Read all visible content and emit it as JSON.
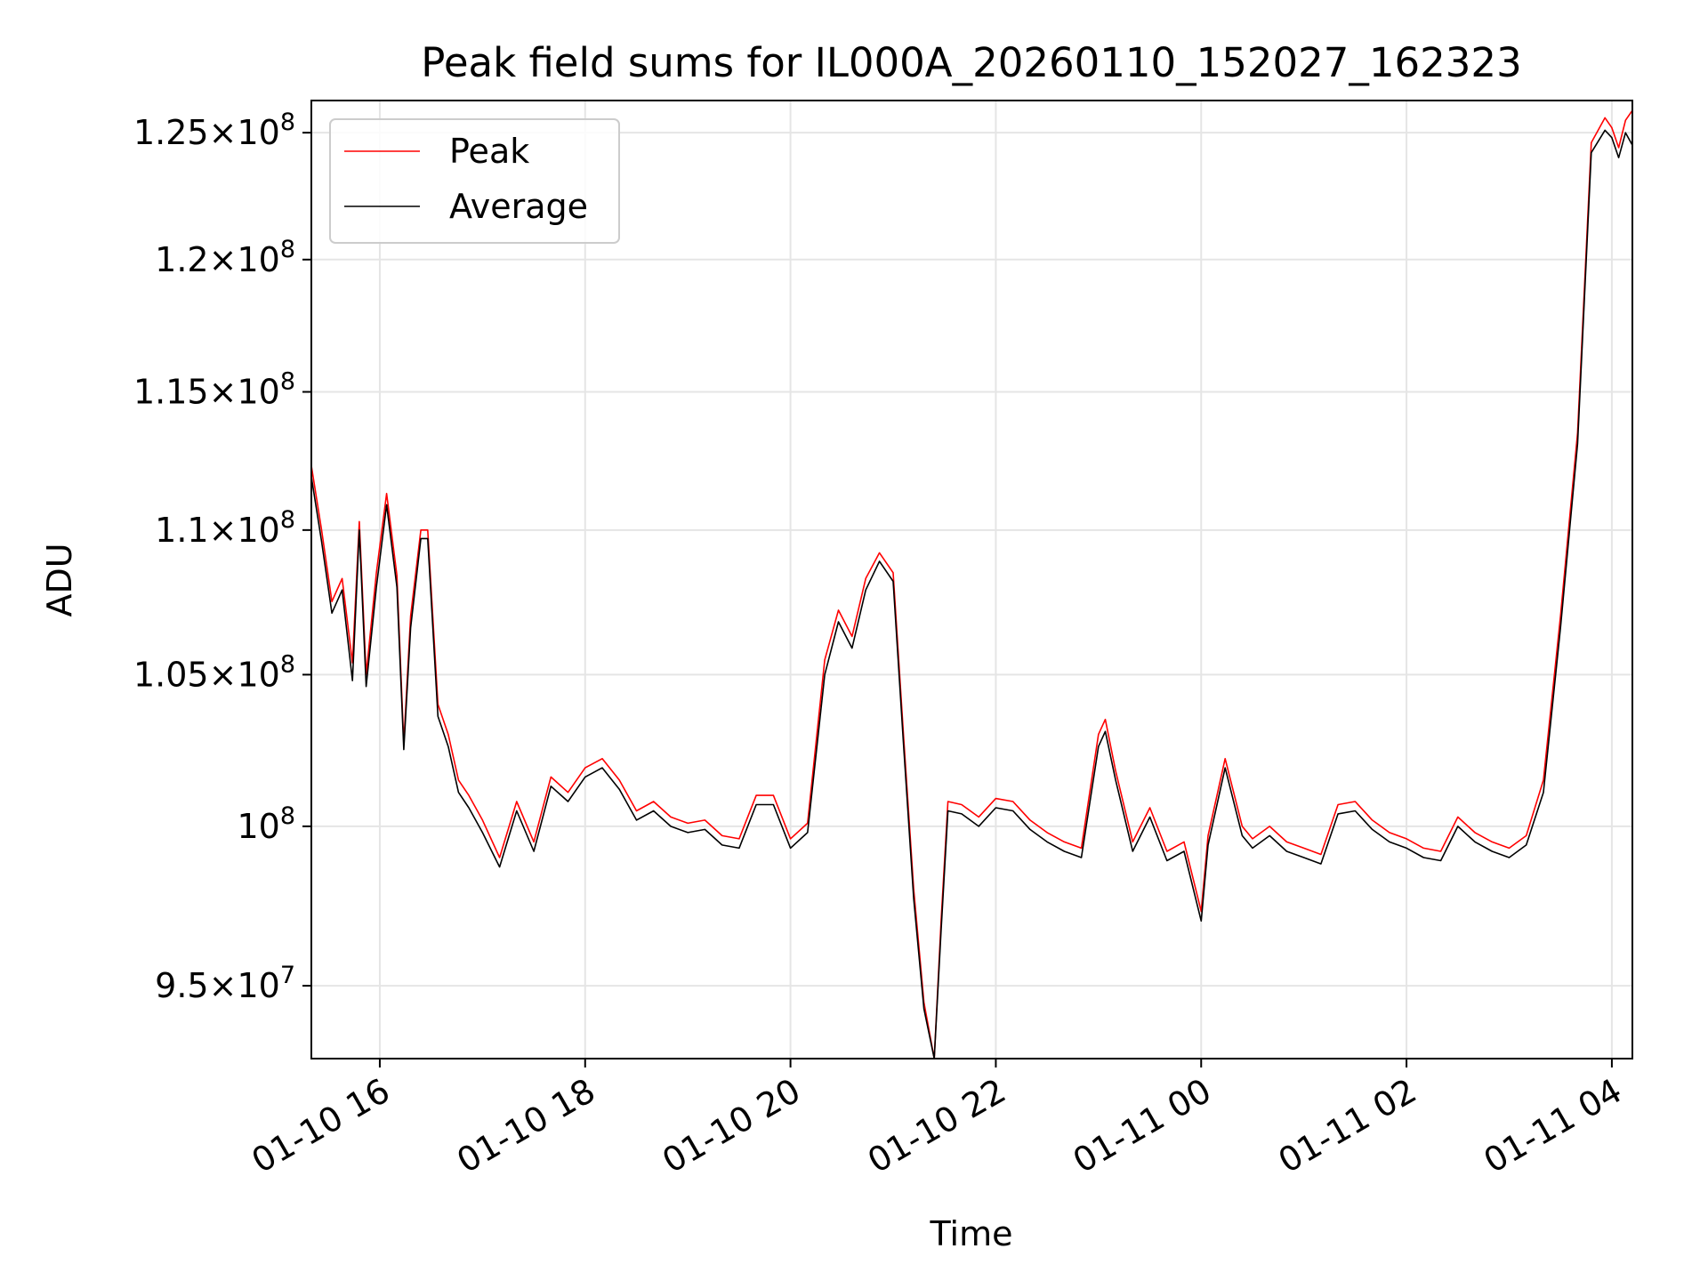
{
  "chart_data": {
    "type": "line",
    "title": "Peak field sums for IL000A_20260110_152027_162323",
    "xlabel": "Time",
    "ylabel": "ADU",
    "y_scale": "log",
    "grid": true,
    "legend": "upper-left",
    "xlim": [
      "2026-01-10 15:20",
      "2026-01-11 04:12"
    ],
    "ylim": [
      92800000,
      126300000
    ],
    "x_ticks": [
      {
        "value": "2026-01-10 16:00",
        "label": "01-10 16"
      },
      {
        "value": "2026-01-10 18:00",
        "label": "01-10 18"
      },
      {
        "value": "2026-01-10 20:00",
        "label": "01-10 20"
      },
      {
        "value": "2026-01-10 22:00",
        "label": "01-10 22"
      },
      {
        "value": "2026-01-11 00:00",
        "label": "01-11 00"
      },
      {
        "value": "2026-01-11 02:00",
        "label": "01-11 02"
      },
      {
        "value": "2026-01-11 04:00",
        "label": "01-11 04"
      }
    ],
    "y_ticks": [
      {
        "value": 95000000,
        "mantissa": "9.5",
        "exp": "7"
      },
      {
        "value": 100000000,
        "mantissa": "",
        "exp": "8"
      },
      {
        "value": 105000000,
        "mantissa": "1.05",
        "exp": "8"
      },
      {
        "value": 110000000,
        "mantissa": "1.1",
        "exp": "8"
      },
      {
        "value": 115000000,
        "mantissa": "1.15",
        "exp": "8"
      },
      {
        "value": 120000000,
        "mantissa": "1.2",
        "exp": "8"
      },
      {
        "value": 125000000,
        "mantissa": "1.25",
        "exp": "8"
      }
    ],
    "series": [
      {
        "name": "Peak",
        "color": "#ff0000",
        "x": [
          "2026-01-10 15:20",
          "2026-01-10 15:26",
          "2026-01-10 15:32",
          "2026-01-10 15:38",
          "2026-01-10 15:44",
          "2026-01-10 15:48",
          "2026-01-10 15:52",
          "2026-01-10 15:58",
          "2026-01-10 16:04",
          "2026-01-10 16:10",
          "2026-01-10 16:14",
          "2026-01-10 16:18",
          "2026-01-10 16:24",
          "2026-01-10 16:28",
          "2026-01-10 16:34",
          "2026-01-10 16:40",
          "2026-01-10 16:46",
          "2026-01-10 16:52",
          "2026-01-10 17:00",
          "2026-01-10 17:10",
          "2026-01-10 17:20",
          "2026-01-10 17:30",
          "2026-01-10 17:40",
          "2026-01-10 17:50",
          "2026-01-10 18:00",
          "2026-01-10 18:10",
          "2026-01-10 18:20",
          "2026-01-10 18:30",
          "2026-01-10 18:40",
          "2026-01-10 18:50",
          "2026-01-10 19:00",
          "2026-01-10 19:10",
          "2026-01-10 19:20",
          "2026-01-10 19:30",
          "2026-01-10 19:40",
          "2026-01-10 19:50",
          "2026-01-10 20:00",
          "2026-01-10 20:10",
          "2026-01-10 20:20",
          "2026-01-10 20:28",
          "2026-01-10 20:36",
          "2026-01-10 20:44",
          "2026-01-10 20:52",
          "2026-01-10 21:00",
          "2026-01-10 21:06",
          "2026-01-10 21:12",
          "2026-01-10 21:18",
          "2026-01-10 21:24",
          "2026-01-10 21:28",
          "2026-01-10 21:32",
          "2026-01-10 21:40",
          "2026-01-10 21:50",
          "2026-01-10 22:00",
          "2026-01-10 22:10",
          "2026-01-10 22:20",
          "2026-01-10 22:30",
          "2026-01-10 22:40",
          "2026-01-10 22:50",
          "2026-01-10 23:00",
          "2026-01-10 23:04",
          "2026-01-10 23:10",
          "2026-01-10 23:20",
          "2026-01-10 23:30",
          "2026-01-10 23:40",
          "2026-01-10 23:50",
          "2026-01-11 00:00",
          "2026-01-11 00:04",
          "2026-01-11 00:14",
          "2026-01-11 00:24",
          "2026-01-11 00:30",
          "2026-01-11 00:40",
          "2026-01-11 00:50",
          "2026-01-11 01:00",
          "2026-01-11 01:10",
          "2026-01-11 01:20",
          "2026-01-11 01:30",
          "2026-01-11 01:40",
          "2026-01-11 01:50",
          "2026-01-11 02:00",
          "2026-01-11 02:10",
          "2026-01-11 02:20",
          "2026-01-11 02:30",
          "2026-01-11 02:40",
          "2026-01-11 02:50",
          "2026-01-11 03:00",
          "2026-01-11 03:10",
          "2026-01-11 03:20",
          "2026-01-11 03:30",
          "2026-01-11 03:40",
          "2026-01-11 03:48",
          "2026-01-11 03:56",
          "2026-01-11 04:00",
          "2026-01-11 04:04",
          "2026-01-11 04:08",
          "2026-01-11 04:12"
        ],
        "values": [
          112300000,
          110000000,
          107500000,
          108300000,
          105400000,
          110300000,
          105000000,
          108500000,
          111300000,
          108400000,
          102700000,
          107000000,
          110000000,
          110000000,
          104000000,
          103000000,
          101500000,
          101000000,
          100200000,
          99000000,
          100800000,
          99500000,
          101600000,
          101100000,
          101900000,
          102200000,
          101500000,
          100500000,
          100800000,
          100300000,
          100100000,
          100200000,
          99700000,
          99600000,
          101000000,
          101000000,
          99600000,
          100100000,
          105500000,
          107200000,
          106300000,
          108300000,
          109200000,
          108500000,
          103000000,
          98000000,
          94500000,
          92800000,
          97000000,
          100800000,
          100700000,
          100300000,
          100900000,
          100800000,
          100200000,
          99800000,
          99500000,
          99300000,
          103000000,
          103500000,
          101800000,
          99500000,
          100600000,
          99200000,
          99500000,
          97300000,
          99700000,
          102200000,
          100000000,
          99600000,
          100000000,
          99500000,
          99300000,
          99100000,
          100700000,
          100800000,
          100200000,
          99800000,
          99600000,
          99300000,
          99200000,
          100300000,
          99800000,
          99500000,
          99300000,
          99700000,
          101500000,
          107000000,
          113500000,
          124600000,
          125600000,
          125200000,
          124400000,
          125500000,
          125900000
        ]
      },
      {
        "name": "Average",
        "color": "#000000",
        "x": [
          "2026-01-10 15:20",
          "2026-01-10 15:26",
          "2026-01-10 15:32",
          "2026-01-10 15:38",
          "2026-01-10 15:44",
          "2026-01-10 15:48",
          "2026-01-10 15:52",
          "2026-01-10 15:58",
          "2026-01-10 16:04",
          "2026-01-10 16:10",
          "2026-01-10 16:14",
          "2026-01-10 16:18",
          "2026-01-10 16:24",
          "2026-01-10 16:28",
          "2026-01-10 16:34",
          "2026-01-10 16:40",
          "2026-01-10 16:46",
          "2026-01-10 16:52",
          "2026-01-10 17:00",
          "2026-01-10 17:10",
          "2026-01-10 17:20",
          "2026-01-10 17:30",
          "2026-01-10 17:40",
          "2026-01-10 17:50",
          "2026-01-10 18:00",
          "2026-01-10 18:10",
          "2026-01-10 18:20",
          "2026-01-10 18:30",
          "2026-01-10 18:40",
          "2026-01-10 18:50",
          "2026-01-10 19:00",
          "2026-01-10 19:10",
          "2026-01-10 19:20",
          "2026-01-10 19:30",
          "2026-01-10 19:40",
          "2026-01-10 19:50",
          "2026-01-10 20:00",
          "2026-01-10 20:10",
          "2026-01-10 20:20",
          "2026-01-10 20:28",
          "2026-01-10 20:36",
          "2026-01-10 20:44",
          "2026-01-10 20:52",
          "2026-01-10 21:00",
          "2026-01-10 21:06",
          "2026-01-10 21:12",
          "2026-01-10 21:18",
          "2026-01-10 21:24",
          "2026-01-10 21:28",
          "2026-01-10 21:32",
          "2026-01-10 21:40",
          "2026-01-10 21:50",
          "2026-01-10 22:00",
          "2026-01-10 22:10",
          "2026-01-10 22:20",
          "2026-01-10 22:30",
          "2026-01-10 22:40",
          "2026-01-10 22:50",
          "2026-01-10 23:00",
          "2026-01-10 23:04",
          "2026-01-10 23:10",
          "2026-01-10 23:20",
          "2026-01-10 23:30",
          "2026-01-10 23:40",
          "2026-01-10 23:50",
          "2026-01-11 00:00",
          "2026-01-11 00:04",
          "2026-01-11 00:14",
          "2026-01-11 00:24",
          "2026-01-11 00:30",
          "2026-01-11 00:40",
          "2026-01-11 00:50",
          "2026-01-11 01:00",
          "2026-01-11 01:10",
          "2026-01-11 01:20",
          "2026-01-11 01:30",
          "2026-01-11 01:40",
          "2026-01-11 01:50",
          "2026-01-11 02:00",
          "2026-01-11 02:10",
          "2026-01-11 02:20",
          "2026-01-11 02:30",
          "2026-01-11 02:40",
          "2026-01-11 02:50",
          "2026-01-11 03:00",
          "2026-01-11 03:10",
          "2026-01-11 03:20",
          "2026-01-11 03:30",
          "2026-01-11 03:40",
          "2026-01-11 03:48",
          "2026-01-11 03:56",
          "2026-01-11 04:00",
          "2026-01-11 04:04",
          "2026-01-11 04:08",
          "2026-01-11 04:12"
        ],
        "values": [
          111900000,
          109600000,
          107100000,
          107900000,
          104800000,
          110000000,
          104600000,
          108000000,
          110900000,
          108000000,
          102500000,
          106600000,
          109700000,
          109700000,
          103600000,
          102600000,
          101100000,
          100600000,
          99800000,
          98700000,
          100500000,
          99200000,
          101300000,
          100800000,
          101600000,
          101900000,
          101200000,
          100200000,
          100500000,
          100000000,
          99800000,
          99900000,
          99400000,
          99300000,
          100700000,
          100700000,
          99300000,
          99800000,
          105000000,
          106800000,
          105900000,
          107900000,
          108900000,
          108200000,
          102700000,
          97700000,
          94300000,
          92800000,
          96700000,
          100500000,
          100400000,
          100000000,
          100600000,
          100500000,
          99900000,
          99500000,
          99200000,
          99000000,
          102600000,
          103100000,
          101500000,
          99200000,
          100300000,
          98900000,
          99200000,
          97000000,
          99400000,
          101900000,
          99700000,
          99300000,
          99700000,
          99200000,
          99000000,
          98800000,
          100400000,
          100500000,
          99900000,
          99500000,
          99300000,
          99000000,
          98900000,
          100000000,
          99500000,
          99200000,
          99000000,
          99400000,
          101100000,
          106600000,
          113100000,
          124200000,
          125100000,
          124800000,
          124000000,
          125000000,
          124500000
        ]
      }
    ]
  }
}
